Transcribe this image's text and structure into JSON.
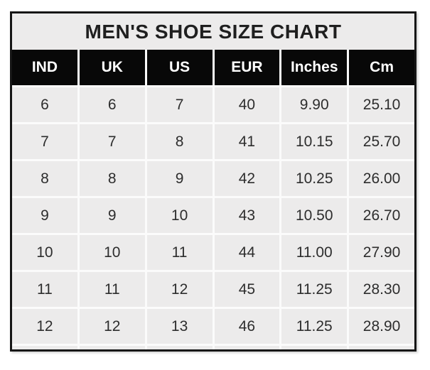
{
  "colors": {
    "page_bg": "#ffffff",
    "border": "#161616",
    "title_bg": "#ecebeb",
    "title_text": "#1f1f1f",
    "header_bg": "#080808",
    "header_text": "#ffffff",
    "cell_bg": "#ecebeb",
    "cell_text": "#2d2d2d",
    "gridline": "#fbfbfb"
  },
  "chart_data": {
    "type": "table",
    "title": "MEN'S SHOE SIZE CHART",
    "columns": [
      "IND",
      "UK",
      "US",
      "EUR",
      "Inches",
      "Cm"
    ],
    "rows": [
      [
        "6",
        "6",
        "7",
        "40",
        "9.90",
        "25.10"
      ],
      [
        "7",
        "7",
        "8",
        "41",
        "10.15",
        "25.70"
      ],
      [
        "8",
        "8",
        "9",
        "42",
        "10.25",
        "26.00"
      ],
      [
        "9",
        "9",
        "10",
        "43",
        "10.50",
        "26.70"
      ],
      [
        "10",
        "10",
        "11",
        "44",
        "11.00",
        "27.90"
      ],
      [
        "11",
        "11",
        "12",
        "45",
        "11.25",
        "28.30"
      ],
      [
        "12",
        "12",
        "13",
        "46",
        "11.25",
        "28.90"
      ]
    ]
  }
}
